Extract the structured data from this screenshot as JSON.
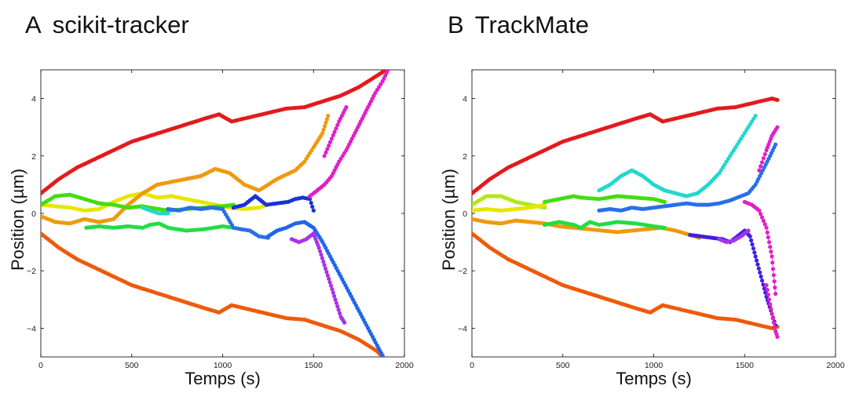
{
  "panels": [
    {
      "letter": "A",
      "title": "scikit-tracker"
    },
    {
      "letter": "B",
      "title": "TrackMate"
    }
  ],
  "chart_data": [
    {
      "type": "scatter",
      "title": "scikit-tracker",
      "xlabel": "Temps (s)",
      "ylabel": "Position (µm)",
      "xlim": [
        0,
        2000
      ],
      "ylim": [
        -5,
        5
      ],
      "xticks": [
        "0",
        "500",
        "1000",
        "1500",
        "2000"
      ],
      "yticks": [
        "−4",
        "−2",
        "0",
        "2",
        "4"
      ],
      "grid": false,
      "series": [
        {
          "color": "#e31a1c",
          "x": [
            0,
            100,
            200,
            300,
            400,
            500,
            600,
            700,
            800,
            900,
            980,
            1050,
            1150,
            1250,
            1350,
            1450,
            1550,
            1650,
            1750,
            1850,
            1900
          ],
          "y": [
            0.7,
            1.2,
            1.6,
            1.9,
            2.2,
            2.5,
            2.7,
            2.9,
            3.1,
            3.3,
            3.45,
            3.2,
            3.35,
            3.5,
            3.65,
            3.7,
            3.9,
            4.1,
            4.4,
            4.8,
            5.0
          ]
        },
        {
          "color": "#ee5a0a",
          "x": [
            0,
            100,
            200,
            300,
            400,
            500,
            600,
            700,
            800,
            900,
            980,
            1050,
            1150,
            1250,
            1350,
            1450,
            1550,
            1650,
            1750,
            1850,
            1880
          ],
          "y": [
            -0.7,
            -1.2,
            -1.6,
            -1.9,
            -2.2,
            -2.5,
            -2.7,
            -2.9,
            -3.1,
            -3.3,
            -3.45,
            -3.2,
            -3.35,
            -3.5,
            -3.65,
            -3.7,
            -3.9,
            -4.1,
            -4.4,
            -4.8,
            -5.0
          ]
        },
        {
          "color": "#e6e600",
          "x": [
            0,
            80,
            160,
            240,
            320,
            400,
            480,
            560,
            640,
            720,
            800,
            880,
            960,
            1040,
            1120,
            1200,
            1250
          ],
          "y": [
            0.3,
            0.25,
            0.2,
            0.1,
            0.15,
            0.4,
            0.6,
            0.7,
            0.55,
            0.6,
            0.5,
            0.4,
            0.3,
            0.2,
            0.15,
            0.2,
            0.3
          ]
        },
        {
          "color": "#ee9a10",
          "x": [
            0,
            80,
            160,
            240,
            320,
            400,
            480,
            560,
            640,
            720,
            800,
            880,
            960,
            1040,
            1120,
            1200,
            1300,
            1400,
            1450,
            1500,
            1550,
            1580
          ],
          "y": [
            -0.1,
            -0.3,
            -0.35,
            -0.2,
            -0.3,
            -0.2,
            0.3,
            0.7,
            1.0,
            1.1,
            1.2,
            1.3,
            1.55,
            1.4,
            1.0,
            0.8,
            1.2,
            1.5,
            1.8,
            2.3,
            2.8,
            3.4
          ]
        },
        {
          "color": "#44dd11",
          "x": [
            0,
            80,
            160,
            240,
            320,
            400,
            480,
            560,
            600,
            700,
            800,
            900,
            1000,
            1060
          ],
          "y": [
            0.3,
            0.6,
            0.65,
            0.5,
            0.35,
            0.3,
            0.2,
            0.25,
            0.2,
            0.1,
            0.15,
            0.2,
            0.25,
            0.3
          ]
        },
        {
          "color": "#22dd44",
          "x": [
            250,
            320,
            400,
            480,
            560,
            600,
            650,
            700,
            800,
            900,
            1000,
            1060
          ],
          "y": [
            -0.5,
            -0.45,
            -0.5,
            -0.45,
            -0.5,
            -0.4,
            -0.35,
            -0.5,
            -0.6,
            -0.55,
            -0.45,
            -0.5
          ]
        },
        {
          "color": "#22d8cc",
          "x": [
            560,
            600,
            650,
            700
          ],
          "y": [
            0.2,
            0.1,
            0.0,
            0.0
          ]
        },
        {
          "color": "#2a6fe8",
          "x": [
            700,
            760,
            820,
            880,
            940,
            1000,
            1060,
            1100,
            1150,
            1200,
            1250
          ],
          "y": [
            0.15,
            0.1,
            0.2,
            0.15,
            0.2,
            0.15,
            -0.5,
            -0.55,
            -0.6,
            -0.8,
            -0.85
          ]
        },
        {
          "color": "#1733d6",
          "x": [
            1060,
            1120,
            1180,
            1240,
            1300,
            1360,
            1400,
            1440,
            1480,
            1500
          ],
          "y": [
            0.2,
            0.3,
            0.6,
            0.3,
            0.35,
            0.4,
            0.5,
            0.55,
            0.5,
            0.1
          ]
        },
        {
          "color": "#1f66ea",
          "x": [
            1250,
            1300,
            1350,
            1400,
            1450,
            1500,
            1550,
            1600,
            1650,
            1700,
            1750,
            1800,
            1850,
            1880
          ],
          "y": [
            -0.8,
            -0.6,
            -0.5,
            -0.35,
            -0.3,
            -0.5,
            -1.0,
            -1.6,
            -2.2,
            -2.8,
            -3.4,
            -4.0,
            -4.6,
            -4.95
          ]
        },
        {
          "color": "#a833e8",
          "x": [
            1380,
            1420,
            1460,
            1500,
            1530,
            1560,
            1590,
            1620,
            1650,
            1670
          ],
          "y": [
            -0.9,
            -1.0,
            -0.9,
            -0.7,
            -1.2,
            -1.8,
            -2.4,
            -3.0,
            -3.6,
            -3.8
          ]
        },
        {
          "color": "#e020c8",
          "x": [
            1480,
            1520,
            1560,
            1600,
            1640,
            1680,
            1720,
            1760,
            1800,
            1840,
            1880,
            1910
          ],
          "y": [
            0.6,
            0.8,
            1.0,
            1.3,
            1.8,
            2.2,
            2.7,
            3.2,
            3.7,
            4.2,
            4.6,
            5.0
          ]
        },
        {
          "color": "#e020c8",
          "x": [
            1560,
            1600,
            1640,
            1680
          ],
          "y": [
            2.0,
            2.6,
            3.2,
            3.7
          ]
        }
      ]
    },
    {
      "type": "scatter",
      "title": "TrackMate",
      "xlabel": "Temps (s)",
      "ylabel": "Position (µm)",
      "xlim": [
        0,
        2000
      ],
      "ylim": [
        -5,
        5
      ],
      "xticks": [
        "0",
        "500",
        "1000",
        "1500",
        "2000"
      ],
      "yticks": [
        "−4",
        "−2",
        "0",
        "2",
        "4"
      ],
      "grid": false,
      "series": [
        {
          "color": "#e31a1c",
          "x": [
            0,
            100,
            200,
            300,
            400,
            500,
            600,
            700,
            800,
            900,
            980,
            1050,
            1150,
            1250,
            1350,
            1450,
            1550,
            1650,
            1680
          ],
          "y": [
            0.7,
            1.2,
            1.6,
            1.9,
            2.2,
            2.5,
            2.7,
            2.9,
            3.1,
            3.3,
            3.45,
            3.2,
            3.35,
            3.5,
            3.65,
            3.7,
            3.85,
            4.0,
            3.95
          ]
        },
        {
          "color": "#ee5a0a",
          "x": [
            0,
            100,
            200,
            300,
            400,
            500,
            600,
            700,
            800,
            900,
            980,
            1050,
            1150,
            1250,
            1350,
            1450,
            1550,
            1650,
            1680
          ],
          "y": [
            -0.7,
            -1.2,
            -1.6,
            -1.9,
            -2.2,
            -2.5,
            -2.7,
            -2.9,
            -3.1,
            -3.3,
            -3.45,
            -3.2,
            -3.35,
            -3.5,
            -3.65,
            -3.7,
            -3.85,
            -4.0,
            -3.95
          ]
        },
        {
          "color": "#b5e61d",
          "x": [
            0,
            80,
            160,
            240,
            320,
            400
          ],
          "y": [
            0.3,
            0.6,
            0.6,
            0.4,
            0.3,
            0.2
          ]
        },
        {
          "color": "#e6e600",
          "x": [
            0,
            80,
            160,
            240,
            320,
            400
          ],
          "y": [
            0.1,
            0.15,
            0.1,
            0.15,
            0.2,
            0.3
          ]
        },
        {
          "color": "#ee9a10",
          "x": [
            0,
            80,
            160,
            240,
            320,
            400,
            480,
            560,
            640,
            720,
            800,
            880,
            960,
            1040,
            1120,
            1200,
            1250
          ],
          "y": [
            -0.2,
            -0.3,
            -0.35,
            -0.25,
            -0.3,
            -0.35,
            -0.45,
            -0.5,
            -0.55,
            -0.6,
            -0.65,
            -0.6,
            -0.55,
            -0.5,
            -0.6,
            -0.75,
            -0.85
          ]
        },
        {
          "color": "#44dd11",
          "x": [
            400,
            480,
            560,
            600,
            700,
            800,
            900,
            1000,
            1060
          ],
          "y": [
            0.4,
            0.5,
            0.6,
            0.55,
            0.5,
            0.6,
            0.55,
            0.5,
            0.4
          ]
        },
        {
          "color": "#22dd44",
          "x": [
            400,
            480,
            560,
            600,
            650,
            700,
            800,
            900,
            1000,
            1060
          ],
          "y": [
            -0.4,
            -0.3,
            -0.4,
            -0.5,
            -0.3,
            -0.4,
            -0.3,
            -0.35,
            -0.45,
            -0.5
          ]
        },
        {
          "color": "#22d8cc",
          "x": [
            700,
            760,
            820,
            880,
            940,
            1000,
            1060,
            1120,
            1180,
            1240,
            1300,
            1360,
            1400,
            1440,
            1480,
            1520,
            1560
          ],
          "y": [
            0.8,
            1.0,
            1.3,
            1.5,
            1.3,
            1.0,
            0.8,
            0.7,
            0.6,
            0.7,
            1.0,
            1.4,
            1.8,
            2.2,
            2.6,
            3.0,
            3.4
          ]
        },
        {
          "color": "#2a6fe8",
          "x": [
            700,
            760,
            820,
            880,
            940,
            1000,
            1060,
            1120,
            1180,
            1240,
            1300,
            1360,
            1420,
            1480,
            1520,
            1560,
            1600,
            1640,
            1670
          ],
          "y": [
            0.1,
            0.15,
            0.1,
            0.2,
            0.15,
            0.2,
            0.25,
            0.3,
            0.35,
            0.3,
            0.3,
            0.35,
            0.45,
            0.6,
            0.7,
            1.0,
            1.5,
            2.0,
            2.4
          ]
        },
        {
          "color": "#3f1fe0",
          "x": [
            1200,
            1260,
            1320,
            1380,
            1420,
            1460,
            1500,
            1530,
            1560,
            1590,
            1620,
            1650,
            1670
          ],
          "y": [
            -0.75,
            -0.8,
            -0.85,
            -0.9,
            -1.0,
            -0.8,
            -0.6,
            -0.8,
            -1.5,
            -2.2,
            -2.9,
            -3.5,
            -3.9
          ]
        },
        {
          "color": "#a833e8",
          "x": [
            1360,
            1400,
            1440,
            1480,
            1520
          ],
          "y": [
            -0.9,
            -1.0,
            -0.95,
            -0.8,
            -0.6
          ]
        },
        {
          "color": "#e020c8",
          "x": [
            1500,
            1540,
            1580,
            1620,
            1650,
            1670
          ],
          "y": [
            0.4,
            0.3,
            0.1,
            -0.5,
            -1.5,
            -2.8
          ]
        },
        {
          "color": "#e020c8",
          "x": [
            1580,
            1620,
            1650,
            1680
          ],
          "y": [
            1.5,
            2.2,
            2.7,
            3.0
          ]
        },
        {
          "color": "#e020c8",
          "x": [
            1620,
            1650,
            1670,
            1680
          ],
          "y": [
            -2.5,
            -3.5,
            -4.1,
            -4.3
          ]
        }
      ]
    }
  ]
}
